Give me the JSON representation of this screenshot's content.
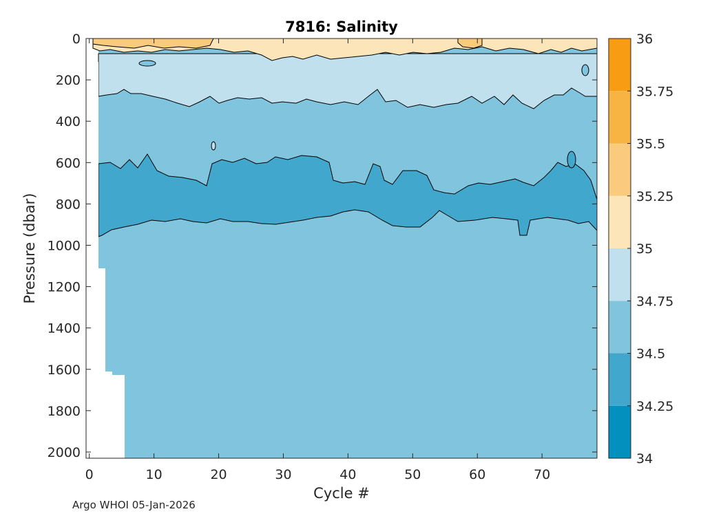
{
  "chart_data": {
    "type": "heatmap",
    "title": "7816:  Salinity",
    "xlabel": "Cycle #",
    "ylabel": "Pressure (dbar)",
    "xlim": [
      -0.5,
      78.5
    ],
    "ylim": [
      2030,
      0
    ],
    "xticks": [
      0,
      10,
      20,
      30,
      40,
      50,
      60,
      70
    ],
    "yticks": [
      0,
      200,
      400,
      600,
      800,
      1000,
      1200,
      1400,
      1600,
      1800,
      2000
    ],
    "colorbar": {
      "ticks": [
        "36",
        "35.75",
        "35.5",
        "35.25",
        "35",
        "34.75",
        "34.5",
        "34.25",
        "34"
      ],
      "levels": [
        34,
        34.25,
        34.5,
        34.75,
        35,
        35.25,
        35.5,
        35.75,
        36
      ],
      "colors": [
        "#0390be",
        "#41a7cc",
        "#80c4de",
        "#bfe0ec",
        "#fde5ba",
        "#facb7c",
        "#f8b443",
        "#f89c14"
      ]
    },
    "layers": [
      {
        "salinity_range": "34.75-35",
        "pressure_top": 55,
        "pressure_bottom": 290,
        "color": "#bfe0ec"
      },
      {
        "salinity_range": "34.5-34.75",
        "pressure_top": 290,
        "pressure_bottom": 2030,
        "color": "#80c4de"
      },
      {
        "salinity_range": "34.25-34.5",
        "pressure_top": 620,
        "pressure_bottom": 930,
        "color": "#41a7cc"
      },
      {
        "salinity_range": "35-35.5",
        "pressure_top": 0,
        "pressure_bottom": 80,
        "color": "#fde5ba"
      }
    ],
    "max_pressure_profile": [
      {
        "cycle": 1,
        "pressure": 1110
      },
      {
        "cycle": 2,
        "pressure": 1610
      },
      {
        "cycle": 3,
        "pressure": 1630
      },
      {
        "cycle": 5,
        "pressure": 2030
      }
    ]
  },
  "footer": "Argo WHOI 05-Jan-2026"
}
